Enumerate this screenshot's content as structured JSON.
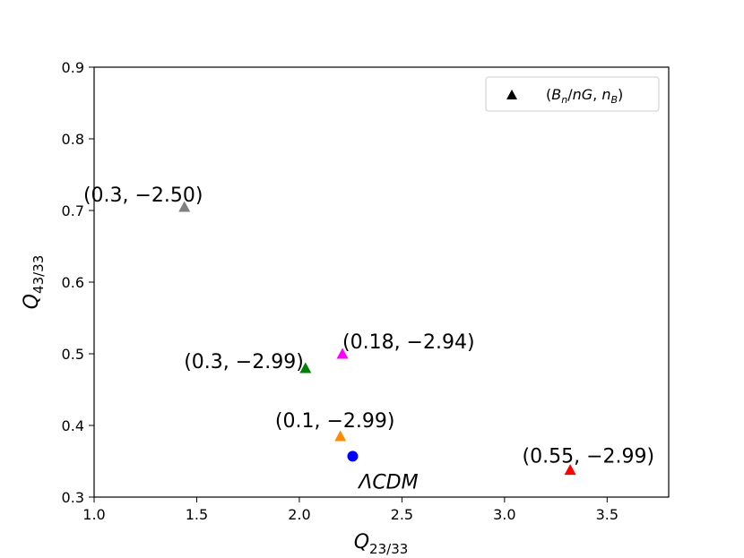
{
  "chart_data": {
    "type": "scatter",
    "xlabel": {
      "base": "Q",
      "sub": "23/33"
    },
    "ylabel": {
      "base": "Q",
      "sub": "43/33"
    },
    "xlim": [
      1.0,
      3.8
    ],
    "ylim": [
      0.3,
      0.9
    ],
    "xticks": [
      1.0,
      1.5,
      2.0,
      2.5,
      3.0,
      3.5
    ],
    "xtick_labels": [
      "1.0",
      "1.5",
      "2.0",
      "2.5",
      "3.0",
      "3.5"
    ],
    "yticks": [
      0.3,
      0.4,
      0.5,
      0.6,
      0.7,
      0.8,
      0.9
    ],
    "ytick_labels": [
      "0.3",
      "0.4",
      "0.5",
      "0.6",
      "0.7",
      "0.8",
      "0.9"
    ],
    "grid": false,
    "legend": {
      "placement": "top-right",
      "marker": "triangle",
      "color": "#000000",
      "label": {
        "open": "(",
        "B": "B",
        "B_sub": "n",
        "slash": "/",
        "nG": "nG",
        "comma": ", ",
        "n": "n",
        "n_sub": "B",
        "close": ")"
      }
    },
    "points": [
      {
        "x": 1.44,
        "y": 0.705,
        "marker": "triangle",
        "color": "#808080",
        "label": "(0.3, −2.50)",
        "label_anchor": "middle",
        "label_dx": -46,
        "label_dy": -6
      },
      {
        "x": 2.21,
        "y": 0.5,
        "marker": "triangle",
        "color": "#ff00ff",
        "label": "(0.18, −2.94)",
        "label_anchor": "start",
        "label_dx": 0,
        "label_dy": -6
      },
      {
        "x": 2.03,
        "y": 0.48,
        "marker": "triangle",
        "color": "#008000",
        "label": "(0.3, −2.99)",
        "label_anchor": "end",
        "label_dx": -2,
        "label_dy": 0
      },
      {
        "x": 2.2,
        "y": 0.385,
        "marker": "triangle",
        "color": "#ff8c00",
        "label": "(0.1, −2.99)",
        "label_anchor": "middle",
        "label_dx": -6,
        "label_dy": -10
      },
      {
        "x": 2.26,
        "y": 0.357,
        "marker": "circle",
        "color": "#0000ff",
        "label": "ΛCDM",
        "label_anchor": "middle",
        "label_dx": 40,
        "label_dy": 36,
        "italic": true
      },
      {
        "x": 3.32,
        "y": 0.338,
        "marker": "triangle",
        "color": "#ff0000",
        "label": "(0.55, −2.99)",
        "label_anchor": "end",
        "label_dx": 94,
        "label_dy": -8
      }
    ]
  }
}
